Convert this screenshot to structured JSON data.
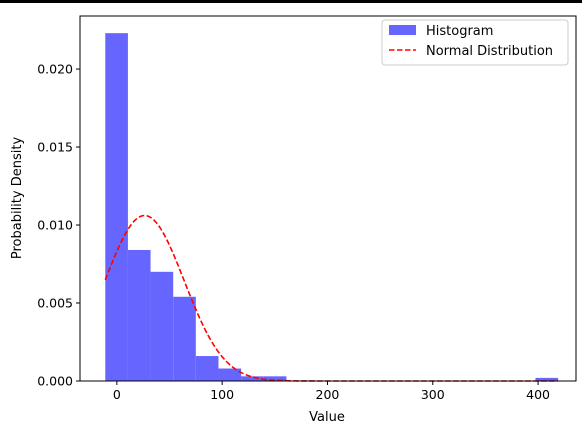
{
  "chart_data": {
    "type": "bar",
    "xlabel": "Value",
    "ylabel": "Probability Density",
    "xlim": [
      -35,
      436
    ],
    "ylim": [
      0,
      0.0234
    ],
    "xticks": [
      0,
      100,
      200,
      300,
      400
    ],
    "yticks": [
      0.0,
      0.005,
      0.01,
      0.015,
      0.02
    ],
    "ytick_labels": [
      "0.000",
      "0.005",
      "0.010",
      "0.015",
      "0.020"
    ],
    "grid": false,
    "legend_position": "top-right",
    "histogram": {
      "name": "Histogram",
      "color": "#6666ff",
      "bin_edges": [
        -11,
        10.5,
        32,
        53.5,
        75,
        96.5,
        118,
        139.5,
        161,
        397.5,
        419
      ],
      "densities": [
        0.0223,
        0.0084,
        0.007,
        0.0054,
        0.0016,
        0.0008,
        0.0003,
        0.0003,
        0.0,
        0.0002
      ]
    },
    "normal_distribution": {
      "name": "Normal Distribution",
      "color": "#ff0000",
      "style": "dashed",
      "mean": 26.3,
      "std": 37.6,
      "x_range": [
        -11,
        419
      ]
    }
  }
}
